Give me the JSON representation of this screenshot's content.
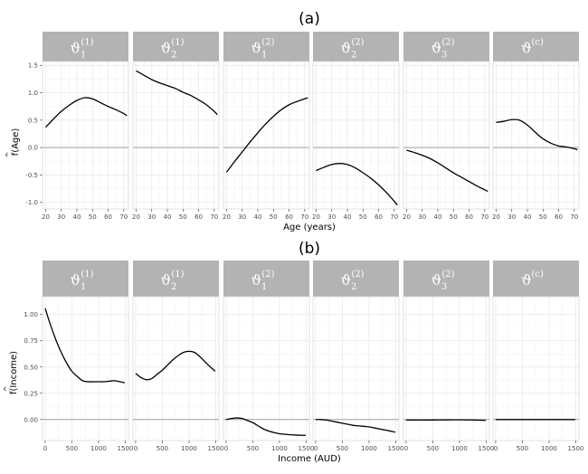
{
  "chart_data": [
    {
      "type": "line",
      "title": "(a)",
      "xlabel": "Age (years)",
      "ylabel": "f(Age)",
      "ylabel_hat": "^",
      "xlim": [
        18,
        73
      ],
      "ylim": [
        -1.12,
        1.57
      ],
      "xticks": [
        20,
        30,
        40,
        50,
        60,
        70
      ],
      "yticks": [
        -1.0,
        -0.5,
        0.0,
        0.5,
        1.0,
        1.5
      ],
      "ytick_labels": [
        "-1.0",
        "-0.5",
        "0.0",
        "0.5",
        "1.0",
        "1.5"
      ],
      "reference_line": 0,
      "panels": [
        {
          "label": "ϑ",
          "sub": "1",
          "sup": "(1)",
          "x": [
            20,
            25,
            30,
            35,
            40,
            45,
            50,
            55,
            60,
            65,
            70,
            72
          ],
          "y": [
            0.37,
            0.52,
            0.66,
            0.77,
            0.86,
            0.91,
            0.89,
            0.82,
            0.75,
            0.69,
            0.62,
            0.58
          ]
        },
        {
          "label": "ϑ",
          "sub": "2",
          "sup": "(1)",
          "x": [
            20,
            25,
            30,
            35,
            40,
            45,
            50,
            55,
            60,
            65,
            70,
            72
          ],
          "y": [
            1.4,
            1.32,
            1.24,
            1.18,
            1.13,
            1.08,
            1.01,
            0.95,
            0.87,
            0.78,
            0.66,
            0.6
          ]
        },
        {
          "label": "ϑ",
          "sub": "1",
          "sup": "(2)",
          "x": [
            20,
            25,
            30,
            35,
            40,
            45,
            50,
            55,
            60,
            65,
            70,
            72
          ],
          "y": [
            -0.45,
            -0.26,
            -0.08,
            0.1,
            0.27,
            0.43,
            0.57,
            0.69,
            0.78,
            0.84,
            0.89,
            0.91
          ]
        },
        {
          "label": "ϑ",
          "sub": "2",
          "sup": "(2)",
          "x": [
            20,
            25,
            30,
            35,
            40,
            45,
            50,
            55,
            60,
            65,
            70,
            72
          ],
          "y": [
            -0.42,
            -0.36,
            -0.31,
            -0.29,
            -0.31,
            -0.37,
            -0.46,
            -0.56,
            -0.68,
            -0.82,
            -0.98,
            -1.05
          ]
        },
        {
          "label": "ϑ",
          "sub": "3",
          "sup": "(2)",
          "x": [
            20,
            25,
            30,
            35,
            40,
            45,
            50,
            55,
            60,
            65,
            70,
            72
          ],
          "y": [
            -0.05,
            -0.09,
            -0.14,
            -0.2,
            -0.28,
            -0.37,
            -0.46,
            -0.54,
            -0.62,
            -0.7,
            -0.77,
            -0.8
          ]
        },
        {
          "label": "ϑ",
          "sub": "",
          "sup": "(c)",
          "x": [
            20,
            25,
            30,
            35,
            40,
            45,
            50,
            55,
            60,
            65,
            70,
            72
          ],
          "y": [
            0.46,
            0.48,
            0.51,
            0.5,
            0.41,
            0.28,
            0.16,
            0.08,
            0.03,
            0.01,
            -0.02,
            -0.04
          ]
        }
      ]
    },
    {
      "type": "line",
      "title": "(b)",
      "xlabel": "Income (AUD)",
      "ylabel": "f(Income)",
      "ylabel_hat": "^",
      "xlim": [
        -50,
        1560
      ],
      "ylim": [
        -0.2,
        1.17
      ],
      "xticks": [
        0,
        500,
        1000,
        1500
      ],
      "yticks": [
        0.0,
        0.25,
        0.5,
        0.75,
        1.0
      ],
      "ytick_labels": [
        "0.00",
        "0.25",
        "0.50",
        "0.75",
        "1.00"
      ],
      "reference_line": 0,
      "panels": [
        {
          "label": "ϑ",
          "sub": "1",
          "sup": "(1)",
          "x": [
            0,
            100,
            200,
            300,
            400,
            500,
            600,
            700,
            800,
            900,
            1000,
            1100,
            1200,
            1300,
            1400,
            1490
          ],
          "y": [
            1.06,
            0.9,
            0.76,
            0.64,
            0.54,
            0.46,
            0.41,
            0.37,
            0.36,
            0.36,
            0.36,
            0.36,
            0.365,
            0.37,
            0.36,
            0.35
          ]
        },
        {
          "label": "ϑ",
          "sub": "2",
          "sup": "(1)",
          "x": [
            0,
            100,
            200,
            300,
            400,
            500,
            600,
            700,
            800,
            900,
            1000,
            1100,
            1200,
            1300,
            1400,
            1490
          ],
          "y": [
            0.44,
            0.4,
            0.38,
            0.39,
            0.43,
            0.47,
            0.52,
            0.57,
            0.61,
            0.64,
            0.65,
            0.64,
            0.6,
            0.55,
            0.5,
            0.46
          ]
        },
        {
          "label": "ϑ",
          "sub": "1",
          "sup": "(2)",
          "x": [
            0,
            100,
            200,
            300,
            400,
            500,
            600,
            700,
            800,
            900,
            1000,
            1100,
            1200,
            1300,
            1400,
            1490
          ],
          "y": [
            0.0,
            0.01,
            0.015,
            0.01,
            -0.01,
            -0.03,
            -0.06,
            -0.09,
            -0.11,
            -0.125,
            -0.135,
            -0.14,
            -0.145,
            -0.148,
            -0.15,
            -0.15
          ]
        },
        {
          "label": "ϑ",
          "sub": "2",
          "sup": "(2)",
          "x": [
            0,
            100,
            200,
            300,
            400,
            500,
            600,
            700,
            800,
            900,
            1000,
            1100,
            1200,
            1300,
            1400,
            1490
          ],
          "y": [
            0.0,
            0.0,
            -0.005,
            -0.015,
            -0.025,
            -0.035,
            -0.045,
            -0.055,
            -0.06,
            -0.065,
            -0.07,
            -0.08,
            -0.09,
            -0.1,
            -0.11,
            -0.12
          ]
        },
        {
          "label": "ϑ",
          "sub": "3",
          "sup": "(2)",
          "x": [
            0,
            300,
            600,
            900,
            1200,
            1490
          ],
          "y": [
            -0.005,
            -0.005,
            -0.004,
            -0.003,
            -0.004,
            -0.008
          ]
        },
        {
          "label": "ϑ",
          "sub": "",
          "sup": "(c)",
          "x": [
            0,
            300,
            600,
            900,
            1200,
            1490
          ],
          "y": [
            0,
            0,
            0,
            0,
            0,
            0
          ]
        }
      ]
    }
  ]
}
